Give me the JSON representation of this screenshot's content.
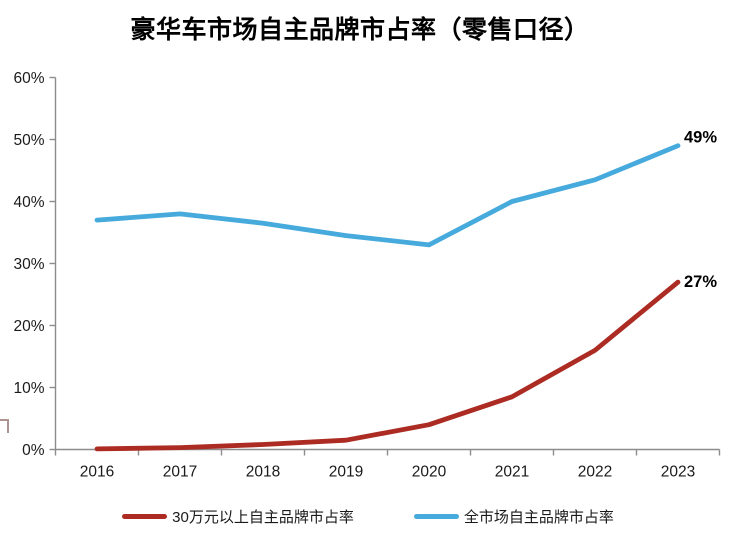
{
  "title": "豪华车市场自主品牌市占率（零售口径）",
  "chart_data": {
    "type": "line",
    "title": "豪华车市场自主品牌市占率（零售口径）",
    "categories": [
      "2016",
      "2017",
      "2018",
      "2019",
      "2020",
      "2021",
      "2022",
      "2023"
    ],
    "series": [
      {
        "name": "30万元以上自主品牌市占率",
        "color": "#AC2C24",
        "values": [
          0.1,
          0.3,
          0.8,
          1.5,
          4,
          8.5,
          16,
          27
        ],
        "end_label": "27%"
      },
      {
        "name": "全市场自主品牌市占率",
        "color": "#47AADC",
        "values": [
          37,
          38,
          36.5,
          34.5,
          33,
          40,
          43.5,
          49
        ],
        "end_label": "49%"
      }
    ],
    "ylim": [
      0,
      60
    ],
    "ytick_step": 10,
    "yticks": [
      "0%",
      "10%",
      "20%",
      "30%",
      "40%",
      "50%",
      "60%"
    ],
    "grid": false,
    "legend_position": "bottom",
    "axis_color": "#8C8C8C",
    "text_color": "#1a1a1a"
  }
}
